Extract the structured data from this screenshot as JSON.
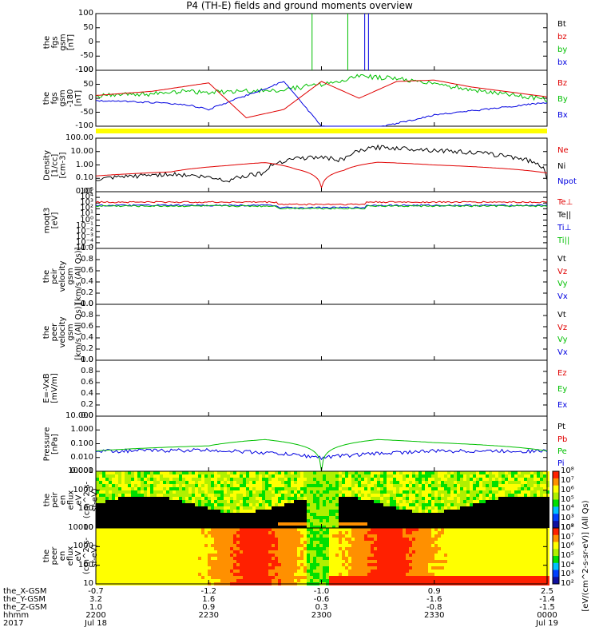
{
  "title": "P4 (TH-E) fields and ground moments overview",
  "colors": {
    "black": "#000000",
    "red": "#e00000",
    "green": "#00c000",
    "blue": "#0000e0",
    "yellow": "#ffff00"
  },
  "panels": [
    {
      "key": "fgs",
      "ylabel": "the\nfgs\ngsm\n[nT]",
      "ticks": [
        "100",
        "50",
        "0",
        "-50",
        "-100"
      ],
      "legend": [
        {
          "text": "Bt",
          "color": "#000000"
        },
        {
          "text": "bz",
          "color": "#e00000"
        },
        {
          "text": "by",
          "color": "#00c000"
        },
        {
          "text": "bx",
          "color": "#0000e0"
        }
      ]
    },
    {
      "key": "fgs2",
      "ylabel": "the\nfgs\ngsm\n-180\n[nT]",
      "ticks": [
        "100",
        "50",
        "0",
        "-50",
        "-100"
      ],
      "legend": [
        {
          "text": "Bz",
          "color": "#e00000"
        },
        {
          "text": "By",
          "color": "#00c000"
        },
        {
          "text": "Bx",
          "color": "#0000e0"
        }
      ]
    },
    {
      "key": "density",
      "ylabel": "Density\n[1/cc]\n[cm-3]",
      "ticks": [
        "100.00",
        "10.00",
        "1.00",
        "0.10",
        "0.01"
      ],
      "legend": [
        {
          "text": "Ne",
          "color": "#e00000"
        },
        {
          "text": "Ni",
          "color": "#000000"
        },
        {
          "text": "Npot",
          "color": "#0000e0"
        }
      ]
    },
    {
      "key": "temp",
      "ylabel": "moqt3\n[eV]",
      "ticks": [
        "10⁵",
        "10⁴",
        "10³",
        "10²",
        "10¹",
        "10⁰",
        "10⁻¹",
        "10⁻²",
        "10⁻³",
        "10⁻⁴",
        "10⁻⁵"
      ],
      "legend": [
        {
          "text": "Te⊥",
          "color": "#e00000"
        },
        {
          "text": "Te||",
          "color": "#000000"
        },
        {
          "text": "Ti⊥",
          "color": "#0000e0"
        },
        {
          "text": "Ti||",
          "color": "#00c000"
        }
      ]
    },
    {
      "key": "peir_vel",
      "ylabel": "the\npeir\nvelocity\ngsm\n[km/s (All Qs)]",
      "ticks": [
        "1.0",
        "0.8",
        "0.6",
        "0.4",
        "0.2",
        "0.0"
      ],
      "legend": [
        {
          "text": "Vt",
          "color": "#000000"
        },
        {
          "text": "Vz",
          "color": "#e00000"
        },
        {
          "text": "Vy",
          "color": "#00c000"
        },
        {
          "text": "Vx",
          "color": "#0000e0"
        }
      ]
    },
    {
      "key": "peer_vel",
      "ylabel": "the\npeer\nvelocity\ngsm\n[km/s (All Qs)]",
      "ticks": [
        "1.0",
        "0.8",
        "0.6",
        "0.4",
        "0.2",
        "0.0"
      ],
      "legend": [
        {
          "text": "Vt",
          "color": "#000000"
        },
        {
          "text": "Vz",
          "color": "#e00000"
        },
        {
          "text": "Vy",
          "color": "#00c000"
        },
        {
          "text": "Vx",
          "color": "#0000e0"
        }
      ]
    },
    {
      "key": "efield",
      "ylabel": "E=-VxB\n[mV/m]",
      "ticks": [
        "1.0",
        "0.8",
        "0.6",
        "0.4",
        "0.2",
        "0.0"
      ],
      "legend": [
        {
          "text": "Ez",
          "color": "#e00000"
        },
        {
          "text": "Ey",
          "color": "#00c000"
        },
        {
          "text": "Ex",
          "color": "#0000e0"
        }
      ]
    },
    {
      "key": "pressure",
      "ylabel": "Pressure\n[nPa]",
      "ticks": [
        "10.000",
        "1.000",
        "0.100",
        "0.010",
        "0.001"
      ],
      "legend": [
        {
          "text": "Pt",
          "color": "#000000"
        },
        {
          "text": "Pb",
          "color": "#e00000"
        },
        {
          "text": "Pe",
          "color": "#00c000"
        },
        {
          "text": "Pi",
          "color": "#0000e0"
        }
      ]
    },
    {
      "key": "peir_spec",
      "ylabel": "the\npeir\nen\neflux\neV\n(cm^2-s-\nsr-eV)",
      "ticks": [
        "10000",
        "1000",
        "100",
        "10"
      ],
      "cbar_label": "[eV/(cm^2-s-sr-eV)] (All Qs)",
      "cbar_ticks": [
        "10⁸",
        "10⁷",
        "10⁶",
        "10⁵",
        "10⁴",
        "10³",
        "10²"
      ]
    },
    {
      "key": "peer_spec",
      "ylabel": "the\npeer\nen\neflux\neV\n(cm^2-s-\nsr-eV)",
      "ticks": [
        "10000",
        "1000",
        "100",
        "10"
      ],
      "cbar_label": "[eV/(cm^2-s-sr-eV)] (All Qs)",
      "cbar_ticks": [
        "10⁸",
        "10⁷",
        "10⁶",
        "10⁵",
        "10⁴",
        "10³",
        "10²"
      ]
    }
  ],
  "xaxis": {
    "row_labels": [
      "the_X-GSM",
      "the_Y-GSM",
      "the_Z-GSM",
      "hhmm",
      "2017"
    ],
    "columns": [
      {
        "x": "-0.7",
        "y": "3.2",
        "z": "1.0",
        "hhmm": "2200",
        "date": "Jul 18"
      },
      {
        "x": "-1.2",
        "y": "1.6",
        "z": "0.9",
        "hhmm": "2230",
        "date": ""
      },
      {
        "x": "-1.0",
        "y": "-0.6",
        "z": "0.3",
        "hhmm": "2300",
        "date": ""
      },
      {
        "x": "0.9",
        "y": "-1.6",
        "z": "-0.8",
        "hhmm": "2330",
        "date": ""
      },
      {
        "x": "2.5",
        "y": "-1.4",
        "z": "-1.5",
        "hhmm": "0000",
        "date": "Jul 19"
      }
    ]
  },
  "chart_data": {
    "type": "line",
    "title": "P4 (TH-E) fields and ground moments overview",
    "xlabel": "hhmm",
    "x": [
      "2200",
      "2230",
      "2300",
      "2330",
      "0000"
    ],
    "series": [
      {
        "name": "Bz",
        "x": [
          "2200",
          "2215",
          "2225",
          "2230",
          "2240",
          "2250",
          "2300",
          "2310",
          "2320",
          "2330",
          "2340",
          "0000"
        ],
        "values": [
          10,
          25,
          45,
          55,
          -70,
          -40,
          60,
          0,
          60,
          65,
          40,
          5
        ]
      },
      {
        "name": "By",
        "x": [
          "2200",
          "2215",
          "2225",
          "2230",
          "2250",
          "2305",
          "2310",
          "2320",
          "2330",
          "0000"
        ],
        "values": [
          10,
          15,
          25,
          20,
          30,
          60,
          80,
          70,
          50,
          -5
        ]
      },
      {
        "name": "Bx",
        "x": [
          "2200",
          "2215",
          "2225",
          "2230",
          "2250",
          "2300",
          "2310",
          "2330",
          "0000"
        ],
        "values": [
          -8,
          -15,
          -25,
          -40,
          60,
          -100,
          -120,
          -60,
          -15
        ]
      },
      {
        "name": "Ne",
        "x": [
          "2200",
          "2220",
          "2235",
          "2245",
          "2253",
          "2300",
          "2306",
          "2315",
          "2330",
          "0000"
        ],
        "values": [
          0.15,
          0.3,
          0.9,
          1.5,
          0.5,
          0.02,
          0.4,
          1.6,
          1.0,
          0.25
        ]
      },
      {
        "name": "Ni",
        "x": [
          "2200",
          "2220",
          "2235",
          "2245",
          "2253",
          "2300",
          "2306",
          "2315",
          "2330",
          "0000"
        ],
        "values": [
          0.07,
          0.2,
          0.06,
          0.25,
          3.0,
          3.5,
          2.0,
          20,
          12,
          0.1
        ]
      },
      {
        "name": "Pe",
        "x": [
          "2200",
          "2230",
          "2245",
          "2300",
          "2315",
          "2330",
          "0000"
        ],
        "values": [
          0.03,
          0.07,
          0.2,
          0.001,
          0.2,
          0.12,
          0.03
        ]
      },
      {
        "name": "Pi",
        "x": [
          "2200",
          "2230",
          "2300",
          "2330",
          "0000"
        ],
        "values": [
          0.03,
          0.035,
          0.01,
          0.03,
          0.03
        ]
      }
    ]
  }
}
